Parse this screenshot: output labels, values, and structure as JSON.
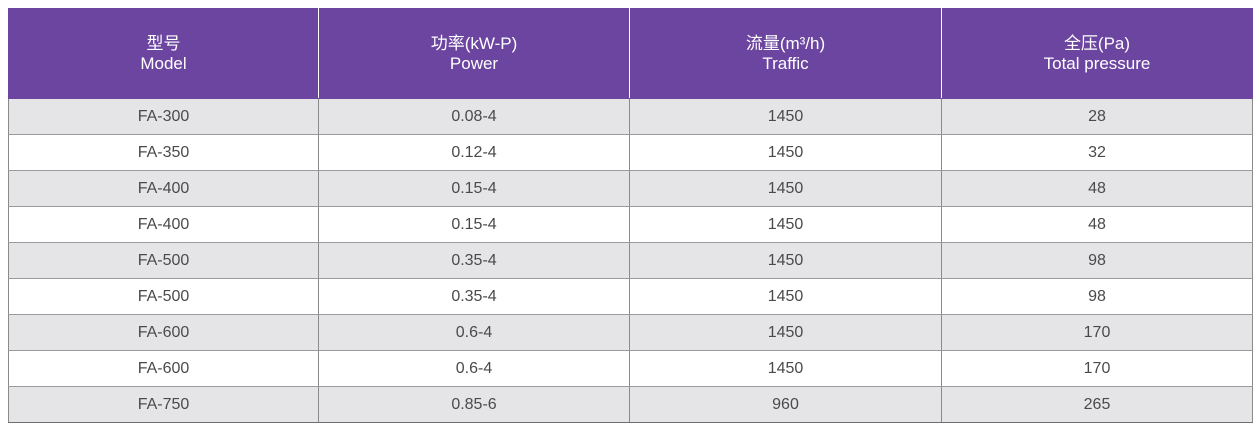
{
  "columns": [
    {
      "cn": "型号",
      "en": "Model"
    },
    {
      "cn": "功率(kW-P)",
      "en": "Power"
    },
    {
      "cn": "流量(m³/h)",
      "en": "Traffic"
    },
    {
      "cn": "全压(Pa)",
      "en": "Total pressure"
    }
  ],
  "rows": [
    [
      "FA-300",
      "0.08-4",
      "1450",
      "28"
    ],
    [
      "FA-350",
      "0.12-4",
      "1450",
      "32"
    ],
    [
      "FA-400",
      "0.15-4",
      "1450",
      "48"
    ],
    [
      "FA-400",
      "0.15-4",
      "1450",
      "48"
    ],
    [
      "FA-500",
      "0.35-4",
      "1450",
      "98"
    ],
    [
      "FA-500",
      "0.35-4",
      "1450",
      "98"
    ],
    [
      "FA-600",
      "0.6-4",
      "1450",
      "170"
    ],
    [
      "FA-600",
      "0.6-4",
      "1450",
      "170"
    ],
    [
      "FA-750",
      "0.85-6",
      "960",
      "265"
    ]
  ],
  "colors": {
    "header_bg": "#6b45a0",
    "header_text": "#ffffff",
    "row_alt_bg": "#e5e5e7",
    "row_bg": "#ffffff",
    "cell_text": "#4a4a4a"
  }
}
